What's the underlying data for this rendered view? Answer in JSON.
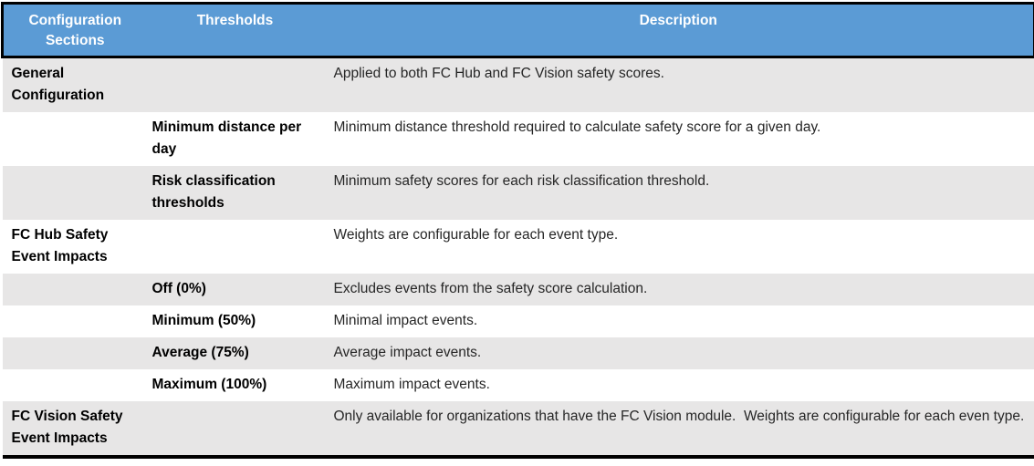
{
  "table": {
    "headers": [
      "Configuration Sections",
      "Thresholds",
      "Description"
    ],
    "rows": [
      {
        "section": "General Configuration",
        "threshold": "",
        "description": "Applied to both FC Hub and FC Vision safety scores."
      },
      {
        "section": "",
        "threshold": "Minimum distance per day",
        "description": "Minimum distance threshold required to calculate safety score for a given day."
      },
      {
        "section": "",
        "threshold": "Risk classification thresholds",
        "description": "Minimum safety scores for each risk classification threshold."
      },
      {
        "section": "FC Hub Safety Event Impacts",
        "threshold": "",
        "description": "Weights are configurable for each event type."
      },
      {
        "section": "",
        "threshold": "Off (0%)",
        "description": "Excludes events from the safety score calculation."
      },
      {
        "section": "",
        "threshold": "Minimum (50%)",
        "description": "Minimal impact events."
      },
      {
        "section": "",
        "threshold": "Average (75%)",
        "description": "Average impact events."
      },
      {
        "section": "",
        "threshold": "Maximum (100%)",
        "description": "Maximum impact events."
      },
      {
        "section": "FC Vision Safety Event Impacts",
        "threshold": "",
        "description": "Only available for organizations that have the FC Vision module.  Weights are configurable for each even type."
      }
    ]
  },
  "colors": {
    "header_background": "#5B9BD5",
    "header_text": "#FFFFFF",
    "band_background": "#E7E6E6",
    "row_background": "#FFFFFF",
    "border": "#000000",
    "body_text": "#262626",
    "bold_text": "#000000"
  }
}
